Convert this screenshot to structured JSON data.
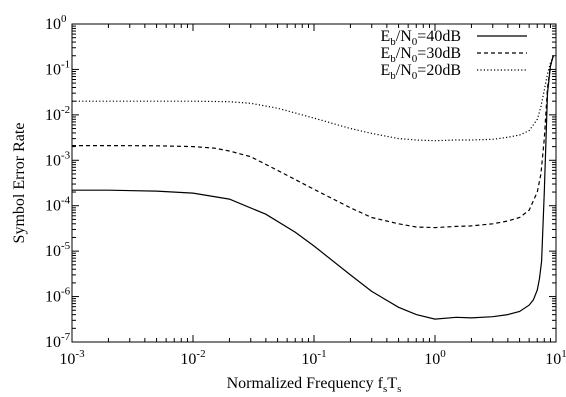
{
  "chart_data": {
    "type": "line",
    "title": "",
    "xlabel": {
      "main": "Normalized Frequency f",
      "s1": "s",
      "mid": "T",
      "s2": "s"
    },
    "ylabel": "Symbol Error Rate",
    "xscale": "log",
    "yscale": "log",
    "xlim": [
      0.001,
      10
    ],
    "ylim": [
      1e-07,
      1
    ],
    "grid": false,
    "legend_position": "top-right",
    "x_ticks": [
      {
        "value": 0.001,
        "base": "10",
        "exp": "-3"
      },
      {
        "value": 0.01,
        "base": "10",
        "exp": "-2"
      },
      {
        "value": 0.1,
        "base": "10",
        "exp": "-1"
      },
      {
        "value": 1,
        "base": "10",
        "exp": "0"
      },
      {
        "value": 10,
        "base": "10",
        "exp": "1"
      }
    ],
    "y_ticks": [
      {
        "value": 1e-07,
        "base": "10",
        "exp": "-7"
      },
      {
        "value": 1e-06,
        "base": "10",
        "exp": "-6"
      },
      {
        "value": 1e-05,
        "base": "10",
        "exp": "-5"
      },
      {
        "value": 0.0001,
        "base": "10",
        "exp": "-4"
      },
      {
        "value": 0.001,
        "base": "10",
        "exp": "-3"
      },
      {
        "value": 0.01,
        "base": "10",
        "exp": "-2"
      },
      {
        "value": 0.1,
        "base": "10",
        "exp": "-1"
      },
      {
        "value": 1,
        "base": "10",
        "exp": "0"
      }
    ],
    "series": [
      {
        "name": "Eb/N0=40dB",
        "legend": {
          "a": "E",
          "b": "b",
          "c": "/N",
          "d": "0",
          "e": "=40dB"
        },
        "style": "solid",
        "color": "#000000",
        "x": [
          0.001,
          0.002,
          0.005,
          0.01,
          0.02,
          0.04,
          0.07,
          0.1,
          0.2,
          0.3,
          0.5,
          0.7,
          1.0,
          1.5,
          2.0,
          3.0,
          4.0,
          5.0,
          6.0,
          6.5,
          7.0,
          7.3,
          7.6,
          8.0,
          8.5,
          9.0,
          9.5
        ],
        "y": [
          0.00022,
          0.00022,
          0.00021,
          0.00019,
          0.00014,
          6.5e-05,
          2.6e-05,
          1.3e-05,
          3e-06,
          1.3e-06,
          5.8e-07,
          4e-07,
          3.2e-07,
          3.5e-07,
          3.4e-07,
          3.6e-07,
          4e-07,
          4.7e-07,
          6.5e-07,
          8.5e-07,
          1.4e-06,
          2.5e-06,
          6e-06,
          0.0002,
          0.03,
          0.12,
          0.2
        ]
      },
      {
        "name": "Eb/N0=30dB",
        "legend": {
          "a": "E",
          "b": "b",
          "c": "/N",
          "d": "0",
          "e": "=30dB"
        },
        "style": "dashed",
        "color": "#000000",
        "x": [
          0.001,
          0.002,
          0.005,
          0.01,
          0.015,
          0.02,
          0.03,
          0.05,
          0.1,
          0.2,
          0.3,
          0.5,
          0.7,
          1.0,
          1.5,
          2.0,
          3.0,
          4.0,
          5.0,
          6.0,
          7.0,
          7.5,
          8.0,
          8.5,
          9.0,
          9.5
        ],
        "y": [
          0.0021,
          0.0021,
          0.00208,
          0.002,
          0.00185,
          0.0016,
          0.0012,
          0.0006,
          0.00023,
          9e-05,
          5.5e-05,
          4e-05,
          3.4e-05,
          3.3e-05,
          3.5e-05,
          3.6e-05,
          4e-05,
          4.6e-05,
          5.5e-05,
          8e-05,
          0.0002,
          0.0005,
          0.003,
          0.04,
          0.12,
          0.2
        ]
      },
      {
        "name": "Eb/N0=20dB",
        "legend": {
          "a": "E",
          "b": "b",
          "c": "/N",
          "d": "0",
          "e": "=20dB"
        },
        "style": "dotted",
        "color": "#000000",
        "x": [
          0.001,
          0.005,
          0.01,
          0.02,
          0.03,
          0.05,
          0.1,
          0.2,
          0.3,
          0.5,
          0.7,
          1.0,
          1.5,
          2.0,
          3.0,
          4.0,
          5.0,
          6.0,
          7.0,
          7.5,
          8.0,
          8.5,
          9.0,
          9.5
        ],
        "y": [
          0.02,
          0.02,
          0.02,
          0.0195,
          0.018,
          0.014,
          0.0085,
          0.005,
          0.0039,
          0.003,
          0.0028,
          0.0027,
          0.0028,
          0.0028,
          0.0029,
          0.0032,
          0.0036,
          0.0045,
          0.008,
          0.015,
          0.035,
          0.08,
          0.14,
          0.2
        ]
      }
    ]
  }
}
